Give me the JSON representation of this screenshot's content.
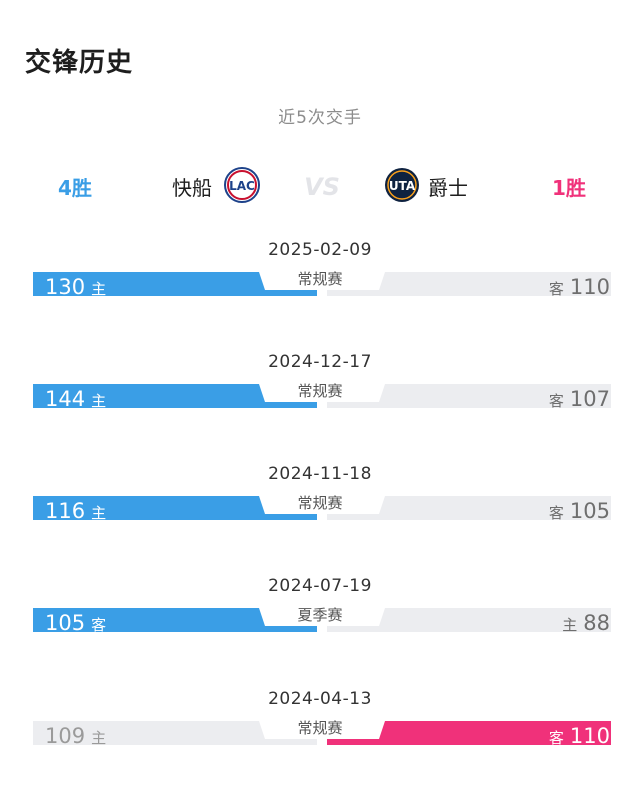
{
  "page": {
    "title": "交锋历史",
    "subtitle": "近5次交手"
  },
  "teams": {
    "left": {
      "name": "快船",
      "wins": "4胜",
      "logo_text": "LAC"
    },
    "right": {
      "name": "爵士",
      "wins": "1胜",
      "logo_text": "UTA"
    },
    "vs_text": "VS"
  },
  "colors": {
    "blue": "#3a9ee6",
    "pink": "#f0317a",
    "grey_bar": "#ecedf0"
  },
  "matches": [
    {
      "date": "2025-02-09",
      "type": "常规赛",
      "left_score": "130",
      "left_tag": "主",
      "right_score": "110",
      "right_tag": "客",
      "winner": "left"
    },
    {
      "date": "2024-12-17",
      "type": "常规赛",
      "left_score": "144",
      "left_tag": "主",
      "right_score": "107",
      "right_tag": "客",
      "winner": "left"
    },
    {
      "date": "2024-11-18",
      "type": "常规赛",
      "left_score": "116",
      "left_tag": "主",
      "right_score": "105",
      "right_tag": "客",
      "winner": "left"
    },
    {
      "date": "2024-07-19",
      "type": "夏季赛",
      "left_score": "105",
      "left_tag": "客",
      "right_score": "88",
      "right_tag": "主",
      "winner": "left"
    },
    {
      "date": "2024-04-13",
      "type": "常规赛",
      "left_score": "109",
      "left_tag": "主",
      "right_score": "110",
      "right_tag": "客",
      "winner": "right"
    }
  ]
}
